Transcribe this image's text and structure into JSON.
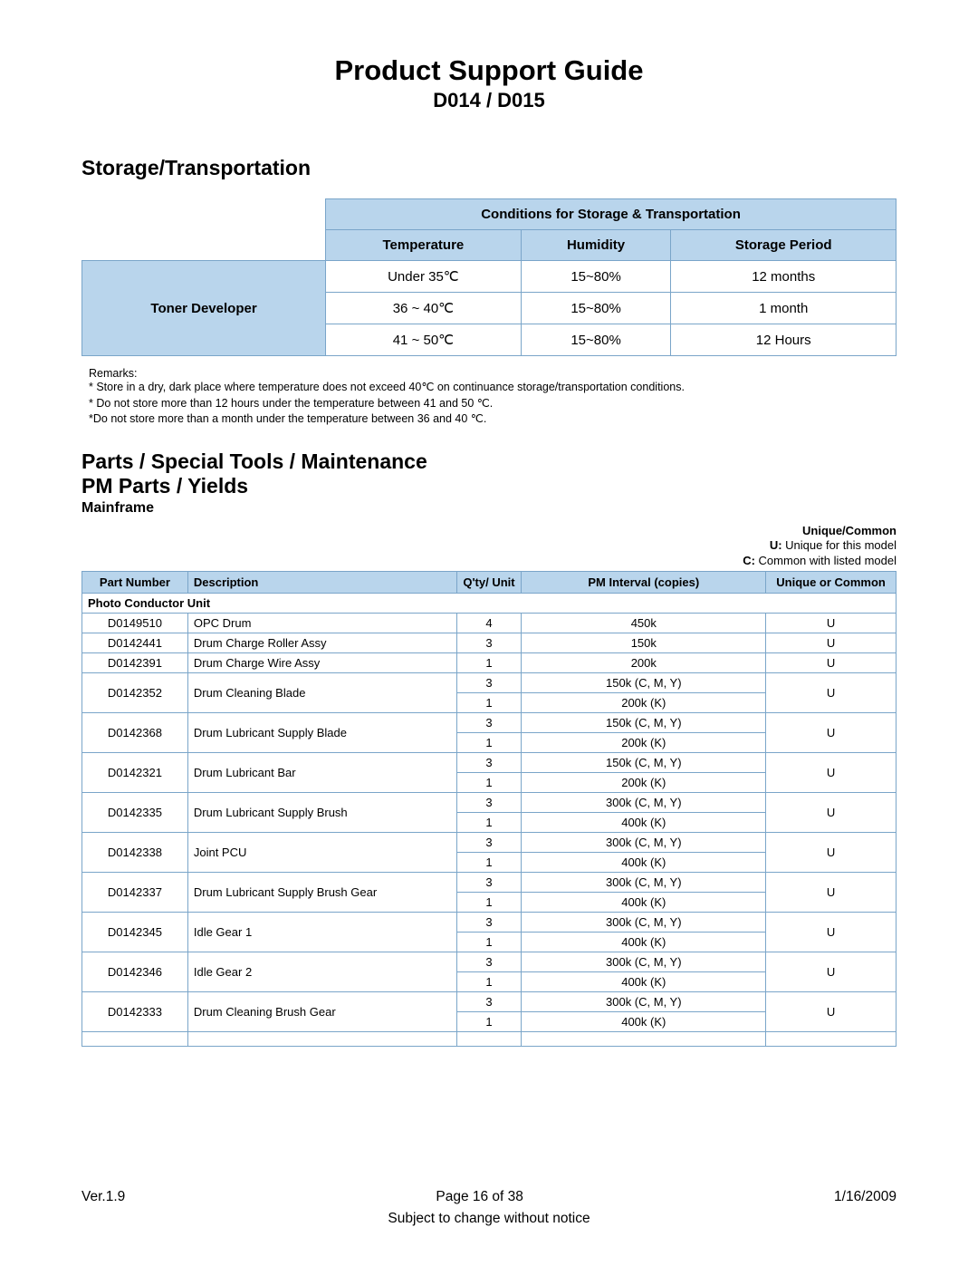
{
  "header": {
    "title": "Product Support Guide",
    "subtitle": "D014 / D015"
  },
  "storage": {
    "section_title": "Storage/Transportation",
    "table_header": "Conditions for Storage & Transportation",
    "col_temp": "Temperature",
    "col_humidity": "Humidity",
    "col_period": "Storage Period",
    "row_label": "Toner Developer",
    "rows": [
      {
        "temp": "Under 35℃",
        "humidity": "15~80%",
        "period": "12 months"
      },
      {
        "temp": "36 ~ 40℃",
        "humidity": "15~80%",
        "period": "1 month"
      },
      {
        "temp": "41 ~ 50℃",
        "humidity": "15~80%",
        "period": "12 Hours"
      }
    ],
    "remarks_label": "Remarks:",
    "remarks": [
      "* Store in a dry, dark place where temperature does not exceed 40℃ on continuance storage/transportation conditions.",
      "* Do not store more than 12 hours under the temperature between 41 and 50 ℃.",
      "*Do not store more than a month under the temperature between 36 and 40 ℃."
    ]
  },
  "parts": {
    "section_title1": "Parts / Special Tools / Maintenance",
    "section_title2": "PM Parts / Yields",
    "subsection": "Mainframe",
    "legend_title": "Unique/Common",
    "legend_u": "U: Unique for this model",
    "legend_c": "C: Common with listed model",
    "columns": {
      "part": "Part Number",
      "desc": "Description",
      "qty": "Q'ty/ Unit",
      "pm": "PM Interval (copies)",
      "uc": "Unique or Common"
    },
    "subheader": "Photo Conductor Unit",
    "rows": [
      {
        "part": "D0149510",
        "desc": "OPC Drum",
        "qty": "4",
        "pm": "450k",
        "uc": "U",
        "split": false
      },
      {
        "part": "D0142441",
        "desc": "Drum Charge Roller Assy",
        "qty": "3",
        "pm": "150k",
        "uc": "U",
        "split": false
      },
      {
        "part": "D0142391",
        "desc": "Drum Charge Wire Assy",
        "qty": "1",
        "pm": "200k",
        "uc": "U",
        "split": false
      },
      {
        "part": "D0142352",
        "desc": "Drum Cleaning Blade",
        "qty1": "3",
        "pm1": "150k (C, M, Y)",
        "qty2": "1",
        "pm2": "200k (K)",
        "uc": "U",
        "split": true
      },
      {
        "part": "D0142368",
        "desc": "Drum Lubricant Supply Blade",
        "qty1": "3",
        "pm1": "150k (C, M, Y)",
        "qty2": "1",
        "pm2": "200k (K)",
        "uc": "U",
        "split": true
      },
      {
        "part": "D0142321",
        "desc": "Drum Lubricant Bar",
        "qty1": "3",
        "pm1": "150k (C, M, Y)",
        "qty2": "1",
        "pm2": "200k (K)",
        "uc": "U",
        "split": true
      },
      {
        "part": "D0142335",
        "desc": "Drum Lubricant Supply Brush",
        "qty1": "3",
        "pm1": "300k (C, M, Y)",
        "qty2": "1",
        "pm2": "400k (K)",
        "uc": "U",
        "split": true
      },
      {
        "part": "D0142338",
        "desc": "Joint PCU",
        "qty1": "3",
        "pm1": "300k (C, M, Y)",
        "qty2": "1",
        "pm2": "400k (K)",
        "uc": "U",
        "split": true
      },
      {
        "part": "D0142337",
        "desc": "Drum Lubricant Supply Brush Gear",
        "qty1": "3",
        "pm1": "300k (C, M, Y)",
        "qty2": "1",
        "pm2": "400k (K)",
        "uc": "U",
        "split": true
      },
      {
        "part": "D0142345",
        "desc": "Idle Gear 1",
        "qty1": "3",
        "pm1": "300k (C, M, Y)",
        "qty2": "1",
        "pm2": "400k (K)",
        "uc": "U",
        "split": true
      },
      {
        "part": "D0142346",
        "desc": "Idle Gear 2",
        "qty1": "3",
        "pm1": "300k (C, M, Y)",
        "qty2": "1",
        "pm2": "400k (K)",
        "uc": "U",
        "split": true
      },
      {
        "part": "D0142333",
        "desc": "Drum Cleaning Brush Gear",
        "qty1": "3",
        "pm1": "300k (C, M, Y)",
        "qty2": "1",
        "pm2": "400k (K)",
        "uc": "U",
        "split": true
      }
    ]
  },
  "footer": {
    "version": "Ver.1.9",
    "page": "Page 16 of 38",
    "date": "1/16/2009",
    "notice": "Subject to change without notice"
  },
  "colors": {
    "table_header_bg": "#b9d5ec",
    "table_border": "#7aa5c9",
    "text": "#000000",
    "background": "#ffffff"
  }
}
